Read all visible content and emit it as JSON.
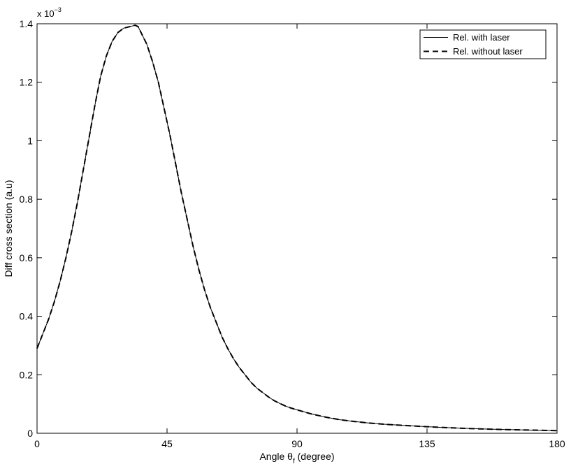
{
  "chart_data": {
    "type": "line",
    "title": "",
    "xlabel": "Angle θ",
    "xlabel_subscript": "f",
    "xlabel_suffix": " (degree)",
    "ylabel": "Diff cross section (a.u)",
    "y_exponent_label": "x 10",
    "y_exponent_power": "−3",
    "xlim": [
      0,
      180
    ],
    "ylim": [
      0,
      1.4
    ],
    "xticks": [
      0,
      45,
      90,
      135,
      180
    ],
    "xtick_labels": [
      "0",
      "45",
      "90",
      "135",
      "180"
    ],
    "yticks": [
      0,
      0.2,
      0.4,
      0.6,
      0.8,
      1.0,
      1.2,
      1.4
    ],
    "ytick_labels": [
      "0",
      "0.2",
      "0.4",
      "0.6",
      "0.8",
      "1",
      "1.2",
      "1.4"
    ],
    "grid": false,
    "legend_position": "top-right",
    "x": [
      0,
      2,
      4,
      6,
      8,
      10,
      12,
      14,
      16,
      18,
      20,
      22,
      24,
      26,
      28,
      30,
      32,
      34,
      35,
      36,
      38,
      40,
      42,
      44,
      46,
      48,
      50,
      52,
      54,
      56,
      58,
      60,
      62,
      64,
      66,
      68,
      70,
      72,
      74,
      76,
      78,
      80,
      82,
      84,
      86,
      88,
      90,
      95,
      100,
      105,
      110,
      115,
      120,
      130,
      140,
      150,
      160,
      170,
      180
    ],
    "series": [
      {
        "name": "Rel. with laser",
        "style": "solid",
        "values": [
          0.29,
          0.34,
          0.39,
          0.45,
          0.52,
          0.6,
          0.69,
          0.79,
          0.9,
          1.01,
          1.12,
          1.22,
          1.29,
          1.34,
          1.37,
          1.385,
          1.39,
          1.395,
          1.39,
          1.37,
          1.33,
          1.27,
          1.2,
          1.11,
          1.02,
          0.92,
          0.82,
          0.73,
          0.64,
          0.56,
          0.49,
          0.43,
          0.38,
          0.33,
          0.29,
          0.255,
          0.225,
          0.2,
          0.175,
          0.155,
          0.14,
          0.125,
          0.112,
          0.102,
          0.093,
          0.086,
          0.08,
          0.066,
          0.055,
          0.046,
          0.04,
          0.035,
          0.031,
          0.025,
          0.02,
          0.016,
          0.013,
          0.011,
          0.009
        ]
      },
      {
        "name": "Rel. without laser",
        "style": "dashed",
        "values": [
          0.29,
          0.34,
          0.39,
          0.45,
          0.52,
          0.6,
          0.69,
          0.79,
          0.9,
          1.01,
          1.12,
          1.22,
          1.29,
          1.34,
          1.37,
          1.385,
          1.39,
          1.395,
          1.39,
          1.37,
          1.33,
          1.27,
          1.2,
          1.11,
          1.02,
          0.92,
          0.82,
          0.73,
          0.64,
          0.56,
          0.49,
          0.43,
          0.38,
          0.33,
          0.29,
          0.255,
          0.225,
          0.2,
          0.175,
          0.155,
          0.14,
          0.125,
          0.112,
          0.102,
          0.093,
          0.086,
          0.08,
          0.066,
          0.055,
          0.046,
          0.04,
          0.035,
          0.031,
          0.025,
          0.02,
          0.016,
          0.013,
          0.011,
          0.009
        ]
      }
    ]
  }
}
